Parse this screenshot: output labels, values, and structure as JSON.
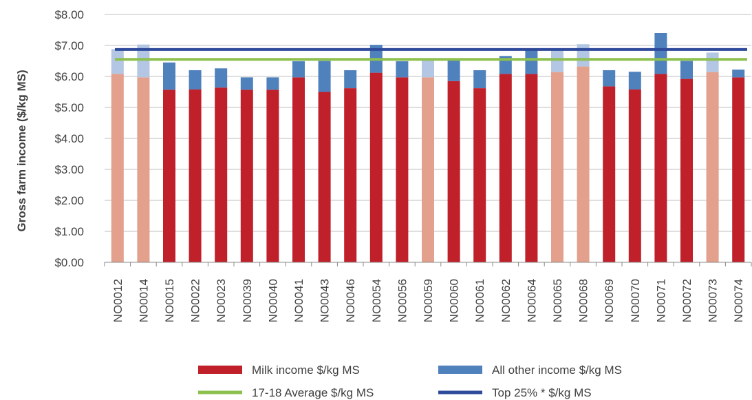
{
  "chart_data": {
    "type": "bar",
    "stacked": true,
    "title": "",
    "xlabel": "",
    "ylabel": "Gross farm income ($/kg MS)",
    "ylim": [
      0,
      8
    ],
    "y_ticks": [
      "$0.00",
      "$1.00",
      "$2.00",
      "$3.00",
      "$4.00",
      "$5.00",
      "$6.00",
      "$7.00",
      "$8.00"
    ],
    "y_tick_values": [
      0,
      1,
      2,
      3,
      4,
      5,
      6,
      7,
      8
    ],
    "grid": true,
    "legend_position": "bottom",
    "categories": [
      "NO0012",
      "NO0014",
      "NO0015",
      "NO0022",
      "NO0023",
      "NO0039",
      "NO0040",
      "NO0041",
      "NO0043",
      "NO0046",
      "NO0054",
      "NO0056",
      "NO0059",
      "NO0060",
      "NO0061",
      "NO0062",
      "NO0064",
      "NO0065",
      "NO0068",
      "NO0069",
      "NO0070",
      "NO0071",
      "NO0072",
      "NO0073",
      "NO0074"
    ],
    "highlighted_categories": [
      "NO0012",
      "NO0014",
      "NO0059",
      "NO0065",
      "NO0068",
      "NO0073"
    ],
    "series": [
      {
        "name": "Milk income $/kg MS",
        "kind": "bar",
        "color": "#C0202A",
        "highlight_color": "#E3A08C",
        "values": [
          6.08,
          5.97,
          5.57,
          5.58,
          5.64,
          5.57,
          5.57,
          5.97,
          5.5,
          5.62,
          6.12,
          5.97,
          5.97,
          5.85,
          5.62,
          6.08,
          6.08,
          6.14,
          6.32,
          5.68,
          5.58,
          6.08,
          5.92,
          6.14,
          5.97
        ]
      },
      {
        "name": "All other income $/kg MS",
        "kind": "bar",
        "color": "#4F81BD",
        "highlight_color": "#B3C6E3",
        "values": [
          0.8,
          1.06,
          0.88,
          0.62,
          0.62,
          0.4,
          0.4,
          0.52,
          1.0,
          0.58,
          0.9,
          0.52,
          0.6,
          0.68,
          0.58,
          0.58,
          0.82,
          0.76,
          0.72,
          0.52,
          0.57,
          1.32,
          0.58,
          0.63,
          0.25
        ]
      },
      {
        "name": "17-18 Average $/kg MS",
        "kind": "line",
        "color": "#8DC04F",
        "value": 6.55
      },
      {
        "name": "Top 25% * $/kg MS",
        "kind": "line",
        "color": "#2E4A9A",
        "value": 6.87
      }
    ]
  }
}
